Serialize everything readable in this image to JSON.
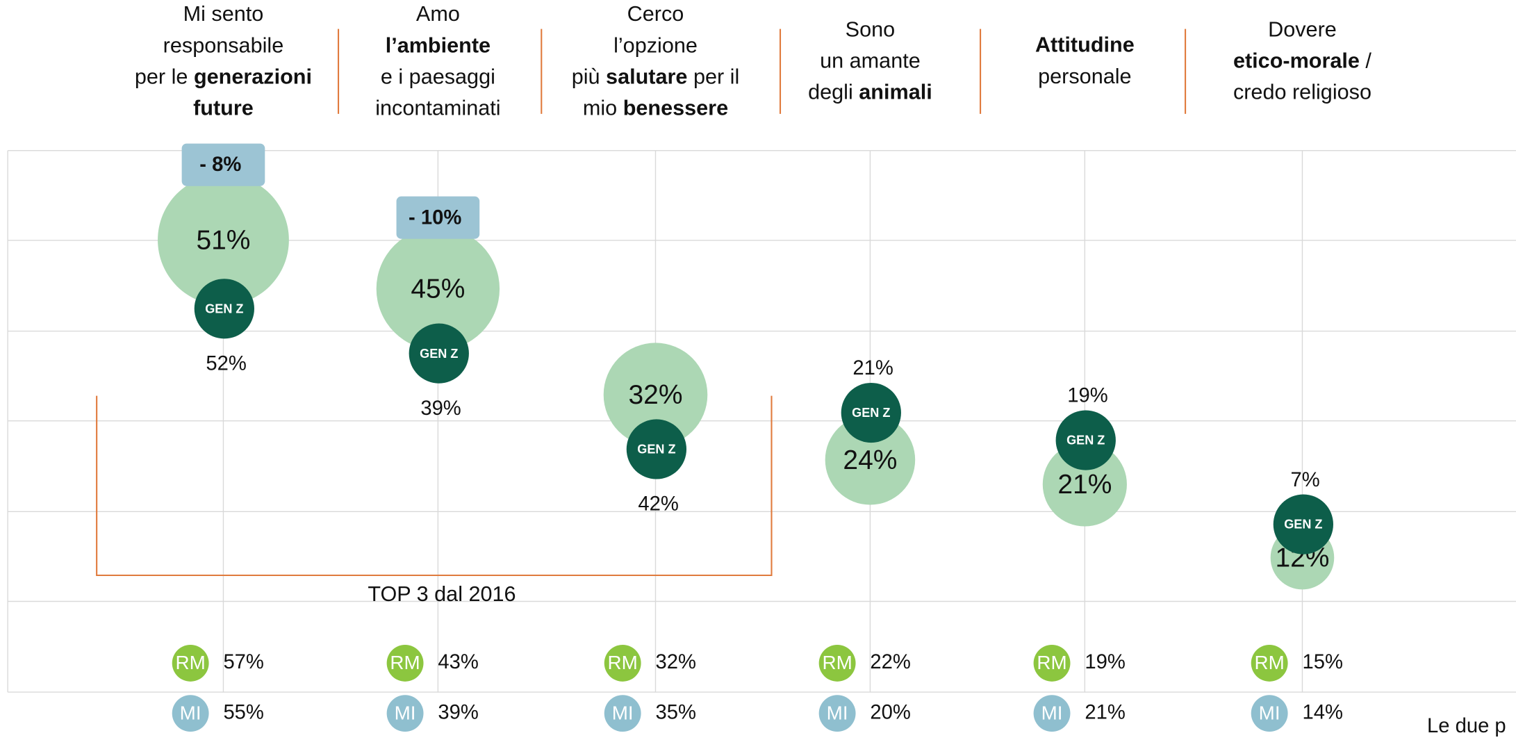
{
  "chart_data": {
    "type": "bubble",
    "headers": [
      [
        [
          {
            "t": "Mi sento"
          }
        ],
        [
          {
            "t": "responsabile"
          }
        ],
        [
          {
            "t": "per le "
          },
          {
            "t": "generazioni",
            "b": true
          }
        ],
        [
          {
            "t": "future",
            "b": true
          }
        ]
      ],
      [
        [
          {
            "t": "Amo"
          }
        ],
        [
          {
            "t": "l’ambiente",
            "b": true
          }
        ],
        [
          {
            "t": "e i paesaggi"
          }
        ],
        [
          {
            "t": "incontaminati"
          }
        ]
      ],
      [
        [
          {
            "t": "Cerco"
          }
        ],
        [
          {
            "t": "l’opzione"
          }
        ],
        [
          {
            "t": "più "
          },
          {
            "t": "salutare",
            "b": true
          },
          {
            "t": " per il"
          }
        ],
        [
          {
            "t": "mio "
          },
          {
            "t": "benessere",
            "b": true
          }
        ]
      ],
      [
        [
          {
            "t": "Sono"
          }
        ],
        [
          {
            "t": "un amante"
          }
        ],
        [
          {
            "t": "degli "
          },
          {
            "t": "animali",
            "b": true
          }
        ]
      ],
      [
        [
          {
            "t": "Attitudine",
            "b": true
          }
        ],
        [
          {
            "t": "personale"
          }
        ]
      ],
      [
        [
          {
            "t": "Dovere"
          }
        ],
        [
          {
            "t": "etico-morale",
            "b": true
          },
          {
            "t": " /"
          }
        ],
        [
          {
            "t": "credo religioso"
          }
        ]
      ]
    ],
    "series": [
      {
        "color": "#acd7b4",
        "values": [
          51,
          45,
          32,
          24,
          21,
          12
        ],
        "value_labels": [
          "51%",
          "45%",
          "32%",
          "24%",
          "21%",
          "12%"
        ]
      },
      {
        "name": "GEN Z",
        "color": "#0d5e4a",
        "values": [
          52,
          39,
          42,
          21,
          19,
          7
        ],
        "value_labels": [
          "52%",
          "39%",
          "42%",
          "21%",
          "19%",
          "7%"
        ]
      },
      {
        "name": "RM",
        "color": "#8cc63f",
        "values": [
          57,
          43,
          32,
          22,
          19,
          15
        ],
        "value_labels": [
          "57%",
          "43%",
          "32%",
          "22%",
          "19%",
          "15%"
        ]
      },
      {
        "name": "MI",
        "color": "#8fbfcf",
        "values": [
          55,
          39,
          35,
          20,
          21,
          14
        ],
        "value_labels": [
          "55%",
          "39%",
          "35%",
          "20%",
          "21%",
          "14%"
        ]
      }
    ],
    "deltas": {
      "color": "#9cc4d4",
      "values": [
        -8,
        -10,
        null,
        null,
        null,
        null
      ],
      "value_labels": [
        "- 8%",
        "- 10%",
        null,
        null,
        null,
        null
      ]
    },
    "top3": {
      "label": "TOP 3 dal 2016",
      "color": "#e07a3c"
    },
    "footnote": "Le due p"
  }
}
